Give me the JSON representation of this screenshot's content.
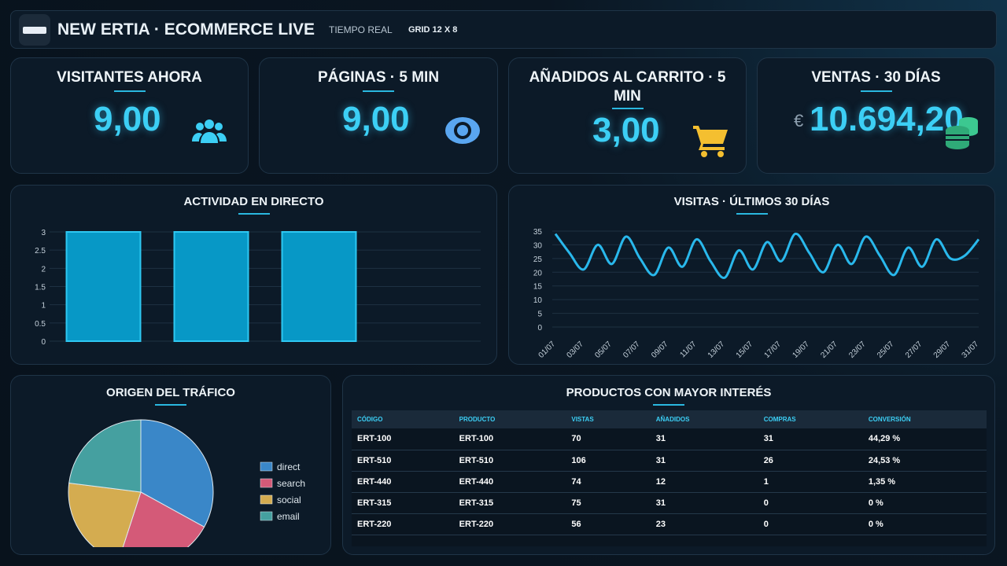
{
  "header": {
    "title": "NEW ERTIA · ECOMMERCE LIVE",
    "subtitle": "TIEMPO REAL",
    "grid": "GRID 12 X 8"
  },
  "kpis": [
    {
      "title": "VISITANTES AHORA",
      "value": "9,00"
    },
    {
      "title": "PÁGINAS · 5 MIN",
      "value": "9,00"
    },
    {
      "title": "AÑADIDOS AL CARRITO · 5 MIN",
      "value": "3,00"
    },
    {
      "title": "VENTAS · 30 DÍAS",
      "unit": "€",
      "value": "10.694,20"
    }
  ],
  "chart_data": [
    {
      "type": "bar",
      "title": "ACTIVIDAD EN DIRECTO",
      "categories": [
        null,
        null,
        null,
        null
      ],
      "values": [
        3,
        3,
        3,
        0
      ],
      "color": "#0798c6",
      "ylim": [
        0,
        3
      ],
      "yticks": [
        0,
        0.5,
        1,
        1.5,
        2,
        2.5,
        3
      ],
      "grid": true
    },
    {
      "type": "line",
      "title": "VISITAS · ÚLTIMOS 30 DÍAS",
      "categories": [
        "01/07",
        null,
        "03/07",
        null,
        "05/07",
        null,
        "07/07",
        null,
        "09/07",
        null,
        "11/07",
        null,
        "13/07",
        null,
        "15/07",
        null,
        "17/07",
        null,
        "19/07",
        null,
        "21/07",
        null,
        "23/07",
        null,
        "25/07",
        null,
        "27/07",
        null,
        "29/07",
        null,
        "31/07"
      ],
      "values": [
        34,
        27,
        21,
        30,
        23,
        33,
        25,
        19,
        29,
        22,
        32,
        24,
        18,
        28,
        21,
        31,
        24,
        34,
        27,
        20,
        30,
        23,
        33,
        26,
        19,
        29,
        22,
        32,
        25,
        26,
        32
      ],
      "color": "#29b8ec",
      "ylim": [
        0,
        35
      ],
      "yticks": [
        0,
        5,
        10,
        15,
        20,
        25,
        30,
        35
      ],
      "grid": true
    },
    {
      "type": "pie",
      "title": "ORIGEN DEL TRÁFICO",
      "categories": [
        "direct",
        "search",
        "social",
        "email"
      ],
      "values": [
        33,
        22,
        22,
        23
      ],
      "colors": [
        "#3a87c8",
        "#d45a78",
        "#d4ac50",
        "#45a0a0"
      ],
      "legend": "right"
    }
  ],
  "table": {
    "title": "PRODUCTOS CON MAYOR INTERÉS",
    "columns": [
      "CÓDIGO",
      "PRODUCTO",
      "VISTAS",
      "AÑADIDOS",
      "COMPRAS",
      "CONVERSIÓN"
    ],
    "rows": [
      [
        "ERT-100",
        "ERT-100",
        "70",
        "31",
        "31",
        "44,29 %"
      ],
      [
        "ERT-510",
        "ERT-510",
        "106",
        "31",
        "26",
        "24,53 %"
      ],
      [
        "ERT-440",
        "ERT-440",
        "74",
        "12",
        "1",
        "1,35 %"
      ],
      [
        "ERT-315",
        "ERT-315",
        "75",
        "31",
        "0",
        "0 %"
      ],
      [
        "ERT-220",
        "ERT-220",
        "56",
        "23",
        "0",
        "0 %"
      ]
    ]
  }
}
